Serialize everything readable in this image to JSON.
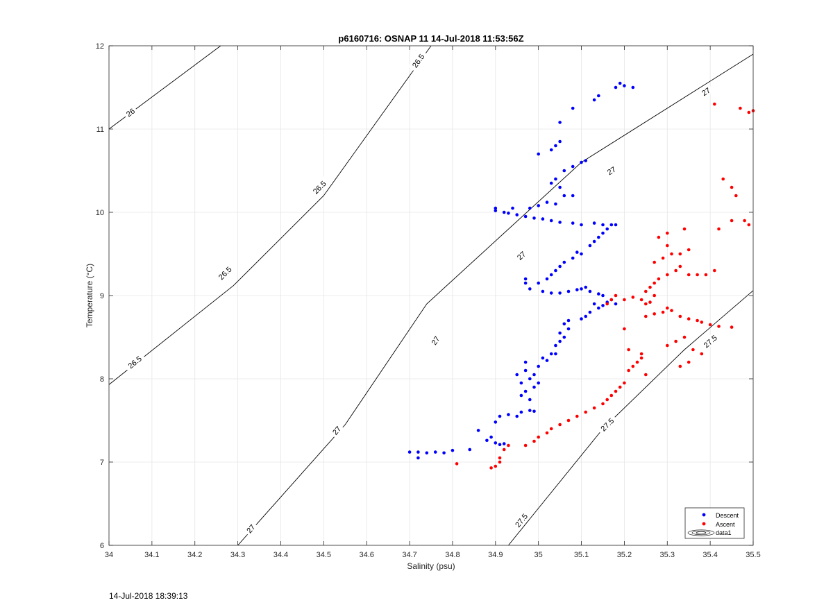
{
  "footer": {
    "timestamp": "14-Jul-2018 18:39:13"
  },
  "chart_data": {
    "type": "scatter",
    "title": "p6160716: OSNAP 11 14-Jul-2018 11:53:56Z",
    "xlabel": "Salinity (psu)",
    "ylabel": "Temperature (°C)",
    "xlim": [
      34,
      35.5
    ],
    "ylim": [
      6,
      12
    ],
    "xticks": [
      34,
      34.1,
      34.2,
      34.3,
      34.4,
      34.5,
      34.6,
      34.7,
      34.8,
      34.9,
      35,
      35.1,
      35.2,
      35.3,
      35.4,
      35.5
    ],
    "xtick_labels": [
      "34",
      "34.1",
      "34.2",
      "34.3",
      "34.4",
      "34.5",
      "34.6",
      "34.7",
      "34.8",
      "34.9",
      "35",
      "35.1",
      "35.2",
      "35.3",
      "35.4",
      "35.5"
    ],
    "yticks": [
      6,
      7,
      8,
      9,
      10,
      11,
      12
    ],
    "ytick_labels": [
      "6",
      "7",
      "8",
      "9",
      "10",
      "11",
      "12"
    ],
    "grid": true,
    "legend": {
      "placement": "bottom-right",
      "entries": [
        {
          "label": "Descent",
          "color": "#0000ff",
          "marker": "dot"
        },
        {
          "label": "Ascent",
          "color": "#ff0000",
          "marker": "dot"
        },
        {
          "label": "data1",
          "color": "#000000",
          "marker": "contour"
        }
      ]
    },
    "contours": [
      {
        "label": "26",
        "points": [
          [
            34.0,
            11.0
          ],
          [
            34.26,
            12.0
          ]
        ],
        "labels_at": [
          [
            34.05,
            11.2
          ]
        ]
      },
      {
        "label": "26.5",
        "points": [
          [
            34.0,
            7.93
          ],
          [
            34.29,
            9.12
          ],
          [
            34.5,
            10.2
          ],
          [
            34.75,
            12.0
          ]
        ],
        "labels_at": [
          [
            34.06,
            8.2
          ],
          [
            34.27,
            9.27
          ],
          [
            34.49,
            10.3
          ],
          [
            34.72,
            11.82
          ]
        ]
      },
      {
        "label": "27",
        "points": [
          [
            34.3,
            6.0
          ],
          [
            34.55,
            7.45
          ],
          [
            34.74,
            8.9
          ],
          [
            35.1,
            10.6
          ],
          [
            35.5,
            11.9
          ]
        ],
        "labels_at": [
          [
            34.33,
            6.2
          ],
          [
            34.53,
            7.38
          ],
          [
            34.76,
            8.46
          ],
          [
            34.96,
            9.48
          ],
          [
            35.17,
            10.5
          ],
          [
            35.39,
            11.45
          ]
        ]
      },
      {
        "label": "27.5",
        "points": [
          [
            34.93,
            6.0
          ],
          [
            35.15,
            7.4
          ],
          [
            35.34,
            8.35
          ],
          [
            35.5,
            9.06
          ]
        ],
        "labels_at": [
          [
            34.96,
            6.3
          ],
          [
            35.16,
            7.45
          ],
          [
            35.4,
            8.45
          ]
        ]
      }
    ],
    "series": [
      {
        "name": "Descent",
        "color": "#0000ff",
        "points": [
          [
            34.7,
            7.12
          ],
          [
            34.72,
            7.12
          ],
          [
            34.72,
            7.05
          ],
          [
            34.74,
            7.11
          ],
          [
            34.76,
            7.12
          ],
          [
            34.78,
            7.11
          ],
          [
            34.8,
            7.14
          ],
          [
            34.84,
            7.15
          ],
          [
            34.86,
            7.38
          ],
          [
            34.88,
            7.26
          ],
          [
            34.89,
            7.3
          ],
          [
            34.9,
            7.23
          ],
          [
            34.91,
            7.21
          ],
          [
            34.9,
            7.48
          ],
          [
            34.92,
            7.22
          ],
          [
            34.91,
            7.55
          ],
          [
            34.93,
            7.57
          ],
          [
            34.95,
            7.55
          ],
          [
            34.96,
            7.6
          ],
          [
            34.98,
            7.62
          ],
          [
            34.99,
            7.61
          ],
          [
            34.96,
            7.8
          ],
          [
            34.97,
            7.85
          ],
          [
            34.98,
            7.75
          ],
          [
            34.96,
            7.95
          ],
          [
            34.95,
            8.05
          ],
          [
            34.97,
            8.1
          ],
          [
            34.99,
            7.9
          ],
          [
            34.98,
            8.0
          ],
          [
            35.0,
            7.95
          ],
          [
            34.97,
            8.2
          ],
          [
            34.99,
            8.05
          ],
          [
            35.0,
            8.15
          ],
          [
            35.01,
            8.25
          ],
          [
            35.02,
            8.22
          ],
          [
            35.03,
            8.3
          ],
          [
            35.04,
            8.3
          ],
          [
            35.04,
            8.4
          ],
          [
            35.05,
            8.45
          ],
          [
            35.06,
            8.5
          ],
          [
            35.05,
            8.55
          ],
          [
            35.07,
            8.6
          ],
          [
            35.07,
            8.7
          ],
          [
            35.06,
            8.66
          ],
          [
            35.1,
            8.72
          ],
          [
            35.11,
            8.75
          ],
          [
            35.12,
            8.8
          ],
          [
            35.13,
            8.9
          ],
          [
            35.14,
            8.85
          ],
          [
            35.15,
            8.88
          ],
          [
            35.16,
            8.92
          ],
          [
            35.17,
            8.95
          ],
          [
            35.18,
            8.9
          ],
          [
            35.15,
            9.0
          ],
          [
            35.14,
            9.02
          ],
          [
            35.12,
            9.05
          ],
          [
            35.11,
            9.1
          ],
          [
            35.1,
            9.08
          ],
          [
            35.09,
            9.07
          ],
          [
            35.07,
            9.05
          ],
          [
            35.05,
            9.03
          ],
          [
            35.03,
            9.03
          ],
          [
            35.01,
            9.05
          ],
          [
            34.98,
            9.08
          ],
          [
            34.97,
            9.15
          ],
          [
            34.97,
            9.2
          ],
          [
            35.0,
            9.15
          ],
          [
            35.02,
            9.2
          ],
          [
            35.03,
            9.25
          ],
          [
            35.04,
            9.3
          ],
          [
            35.05,
            9.35
          ],
          [
            35.06,
            9.4
          ],
          [
            35.08,
            9.45
          ],
          [
            35.1,
            9.5
          ],
          [
            35.09,
            9.52
          ],
          [
            35.12,
            9.6
          ],
          [
            35.13,
            9.65
          ],
          [
            35.14,
            9.7
          ],
          [
            35.15,
            9.75
          ],
          [
            35.16,
            9.8
          ],
          [
            35.17,
            9.85
          ],
          [
            35.18,
            9.85
          ],
          [
            35.15,
            9.85
          ],
          [
            35.13,
            9.87
          ],
          [
            35.1,
            9.85
          ],
          [
            35.08,
            9.87
          ],
          [
            35.05,
            9.88
          ],
          [
            35.03,
            9.9
          ],
          [
            35.01,
            9.92
          ],
          [
            34.99,
            9.93
          ],
          [
            34.97,
            9.95
          ],
          [
            34.95,
            9.97
          ],
          [
            34.93,
            9.99
          ],
          [
            34.92,
            10.0
          ],
          [
            34.9,
            10.02
          ],
          [
            34.9,
            10.05
          ],
          [
            34.94,
            10.05
          ],
          [
            34.98,
            10.05
          ],
          [
            35.0,
            10.08
          ],
          [
            35.02,
            10.12
          ],
          [
            35.04,
            10.1
          ],
          [
            35.06,
            10.2
          ],
          [
            35.08,
            10.2
          ],
          [
            35.05,
            10.3
          ],
          [
            35.03,
            10.35
          ],
          [
            35.04,
            10.4
          ],
          [
            35.06,
            10.5
          ],
          [
            35.08,
            10.55
          ],
          [
            35.1,
            10.6
          ],
          [
            35.11,
            10.62
          ],
          [
            35.03,
            10.75
          ],
          [
            35.04,
            10.8
          ],
          [
            35.05,
            10.85
          ],
          [
            35.0,
            10.7
          ],
          [
            35.05,
            11.08
          ],
          [
            35.08,
            11.25
          ],
          [
            35.13,
            11.35
          ],
          [
            35.14,
            11.4
          ],
          [
            35.18,
            11.5
          ],
          [
            35.19,
            11.55
          ],
          [
            35.2,
            11.52
          ],
          [
            35.22,
            11.5
          ]
        ]
      },
      {
        "name": "Ascent",
        "color": "#ff0000",
        "points": [
          [
            34.81,
            6.98
          ],
          [
            34.89,
            6.93
          ],
          [
            34.9,
            6.95
          ],
          [
            34.91,
            7.0
          ],
          [
            34.91,
            7.05
          ],
          [
            34.92,
            7.15
          ],
          [
            34.93,
            7.2
          ],
          [
            34.97,
            7.2
          ],
          [
            34.99,
            7.25
          ],
          [
            35.0,
            7.3
          ],
          [
            35.02,
            7.35
          ],
          [
            35.03,
            7.4
          ],
          [
            35.05,
            7.45
          ],
          [
            35.07,
            7.5
          ],
          [
            35.09,
            7.55
          ],
          [
            35.11,
            7.6
          ],
          [
            35.13,
            7.65
          ],
          [
            35.15,
            7.7
          ],
          [
            35.16,
            7.75
          ],
          [
            35.17,
            7.8
          ],
          [
            35.18,
            7.85
          ],
          [
            35.19,
            7.9
          ],
          [
            35.2,
            7.95
          ],
          [
            35.21,
            8.1
          ],
          [
            35.22,
            8.15
          ],
          [
            35.23,
            8.2
          ],
          [
            35.24,
            8.25
          ],
          [
            35.25,
            8.05
          ],
          [
            35.21,
            8.35
          ],
          [
            35.24,
            8.3
          ],
          [
            35.2,
            8.6
          ],
          [
            35.25,
            8.75
          ],
          [
            35.27,
            8.78
          ],
          [
            35.29,
            8.8
          ],
          [
            35.3,
            8.85
          ],
          [
            35.31,
            8.82
          ],
          [
            35.33,
            8.75
          ],
          [
            35.35,
            8.72
          ],
          [
            35.37,
            8.7
          ],
          [
            35.38,
            8.68
          ],
          [
            35.4,
            8.65
          ],
          [
            35.42,
            8.63
          ],
          [
            35.45,
            8.62
          ],
          [
            35.3,
            8.4
          ],
          [
            35.32,
            8.45
          ],
          [
            35.34,
            8.5
          ],
          [
            35.36,
            8.35
          ],
          [
            35.38,
            8.3
          ],
          [
            35.33,
            8.15
          ],
          [
            35.35,
            8.2
          ],
          [
            35.2,
            8.95
          ],
          [
            35.22,
            8.98
          ],
          [
            35.24,
            8.95
          ],
          [
            35.25,
            8.9
          ],
          [
            35.26,
            8.92
          ],
          [
            35.18,
            9.0
          ],
          [
            35.17,
            8.95
          ],
          [
            35.16,
            8.9
          ],
          [
            35.26,
            9.1
          ],
          [
            35.27,
            9.15
          ],
          [
            35.28,
            9.2
          ],
          [
            35.3,
            9.25
          ],
          [
            35.32,
            9.3
          ],
          [
            35.33,
            9.35
          ],
          [
            35.35,
            9.25
          ],
          [
            35.37,
            9.25
          ],
          [
            35.39,
            9.25
          ],
          [
            35.27,
            9.4
          ],
          [
            35.29,
            9.45
          ],
          [
            35.31,
            9.5
          ],
          [
            35.33,
            9.5
          ],
          [
            35.35,
            9.55
          ],
          [
            35.28,
            9.7
          ],
          [
            35.3,
            9.75
          ],
          [
            35.34,
            9.8
          ],
          [
            35.3,
            9.6
          ],
          [
            35.27,
            9.0
          ],
          [
            35.25,
            9.05
          ],
          [
            35.41,
            9.3
          ],
          [
            35.42,
            9.8
          ],
          [
            35.43,
            10.4
          ],
          [
            35.45,
            10.3
          ],
          [
            35.46,
            10.2
          ],
          [
            35.45,
            9.9
          ],
          [
            35.48,
            9.9
          ],
          [
            35.49,
            9.85
          ],
          [
            35.41,
            11.3
          ],
          [
            35.47,
            11.25
          ],
          [
            35.49,
            11.2
          ],
          [
            35.5,
            11.22
          ]
        ]
      }
    ]
  }
}
